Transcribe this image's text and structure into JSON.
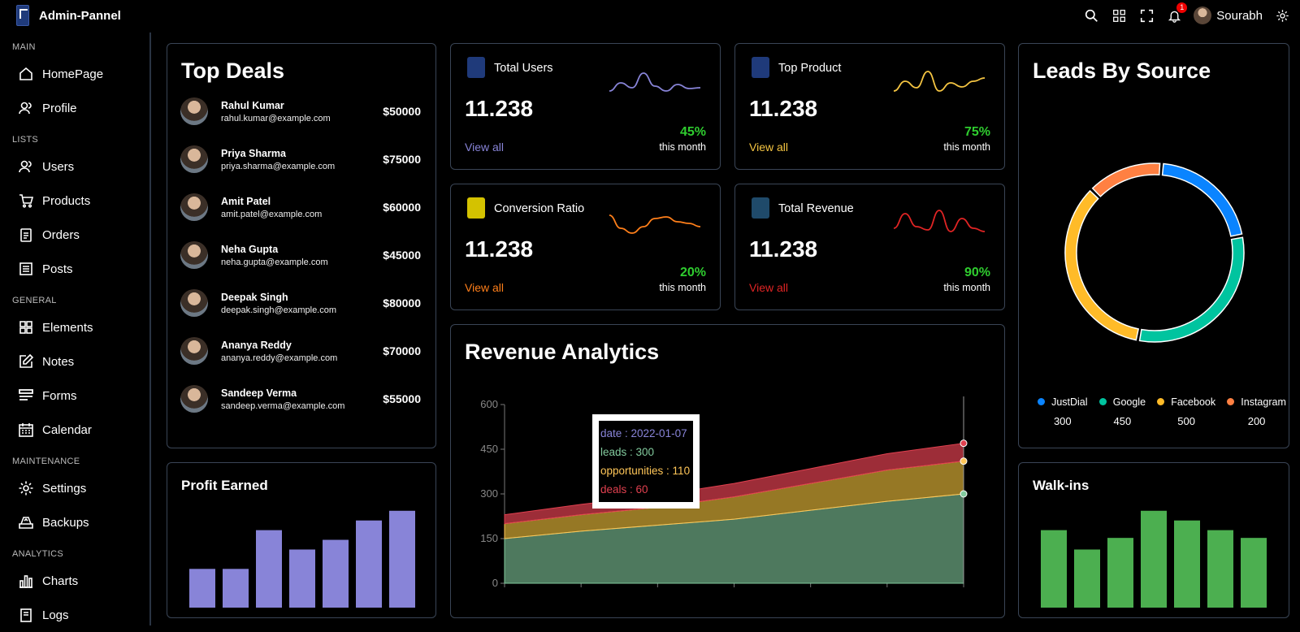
{
  "app": {
    "title": "Admin-Pannel",
    "user": "Sourabh",
    "notifications": "1"
  },
  "sidebar": {
    "sections": [
      {
        "title": "MAIN",
        "items": [
          "HomePage",
          "Profile"
        ]
      },
      {
        "title": "LISTS",
        "items": [
          "Users",
          "Products",
          "Orders",
          "Posts"
        ]
      },
      {
        "title": "GENERAL",
        "items": [
          "Elements",
          "Notes",
          "Forms",
          "Calendar"
        ]
      },
      {
        "title": "MAINTENANCE",
        "items": [
          "Settings",
          "Backups"
        ]
      },
      {
        "title": "ANALYTICS",
        "items": [
          "Charts",
          "Logs"
        ]
      }
    ]
  },
  "top_deals": {
    "title": "Top Deals",
    "items": [
      {
        "name": "Rahul Kumar",
        "email": "rahul.kumar@example.com",
        "amount": "$50000"
      },
      {
        "name": "Priya Sharma",
        "email": "priya.sharma@example.com",
        "amount": "$75000"
      },
      {
        "name": "Amit Patel",
        "email": "amit.patel@example.com",
        "amount": "$60000"
      },
      {
        "name": "Neha Gupta",
        "email": "neha.gupta@example.com",
        "amount": "$45000"
      },
      {
        "name": "Deepak Singh",
        "email": "deepak.singh@example.com",
        "amount": "$80000"
      },
      {
        "name": "Ananya Reddy",
        "email": "ananya.reddy@example.com",
        "amount": "$70000"
      },
      {
        "name": "Sandeep Verma",
        "email": "sandeep.verma@example.com",
        "amount": "$55000"
      }
    ]
  },
  "stats": [
    {
      "label": "Total Users",
      "value": "11.238",
      "link": "View all",
      "percent": "45%",
      "period": "this month",
      "color": "#8884d8",
      "icon_color": "#1f3a7a"
    },
    {
      "label": "Top Product",
      "value": "11.238",
      "link": "View all",
      "percent": "75%",
      "period": "this month",
      "color": "#f5c542",
      "icon_color": "#1f3a7a"
    },
    {
      "label": "Conversion Ratio",
      "value": "11.238",
      "link": "View all",
      "percent": "20%",
      "period": "this month",
      "color": "#ff7f1a",
      "icon_color": "#d4c200"
    },
    {
      "label": "Total Revenue",
      "value": "11.238",
      "link": "View all",
      "percent": "90%",
      "period": "this month",
      "color": "#e02424",
      "icon_color": "#1f4a6a"
    }
  ],
  "leads": {
    "title": "Leads By Source"
  },
  "profit": {
    "title": "Profit Earned"
  },
  "walkins": {
    "title": "Walk-ins"
  },
  "revenue": {
    "title": "Revenue Analytics",
    "tooltip": {
      "date": "date : 2022-01-07",
      "leads": "leads : 300",
      "opportunities": "opportunities : 110",
      "deals": "deals : 60"
    }
  },
  "chart_data": [
    {
      "type": "area",
      "title": "Revenue Analytics",
      "yticks": [
        0,
        150,
        300,
        450,
        600
      ],
      "ylim": [
        0,
        600
      ],
      "x": [
        "",
        "",
        "",
        "",
        "",
        "",
        ""
      ],
      "series": [
        {
          "name": "leads",
          "color": "#82ca9d",
          "values": [
            150,
            175,
            195,
            215,
            245,
            275,
            300
          ]
        },
        {
          "name": "opportunities",
          "color": "#ffc658",
          "values": [
            50,
            55,
            60,
            75,
            90,
            105,
            110
          ]
        },
        {
          "name": "deals",
          "color": "#e0404f",
          "values": [
            30,
            35,
            40,
            45,
            50,
            55,
            60
          ]
        }
      ]
    },
    {
      "type": "pie",
      "title": "Leads By Source",
      "categories": [
        "JustDial",
        "Google",
        "Facebook",
        "Instagram"
      ],
      "values": [
        300,
        450,
        500,
        200
      ],
      "colors": [
        "#0a84ff",
        "#00c49f",
        "#ffbb28",
        "#ff8042"
      ]
    },
    {
      "type": "bar",
      "title": "Profit Earned",
      "values": [
        20,
        20,
        40,
        30,
        35,
        45,
        50
      ],
      "ylim": [
        0,
        52
      ],
      "color": "#8884d8"
    },
    {
      "type": "bar",
      "title": "Walk-ins",
      "values": [
        40,
        30,
        36,
        50,
        45,
        40,
        36
      ],
      "ylim": [
        0,
        52
      ],
      "color": "#4caf50"
    }
  ],
  "sparks": [
    [
      30,
      20,
      26,
      8,
      24,
      30,
      22,
      27,
      26
    ],
    [
      30,
      18,
      26,
      6,
      30,
      20,
      25,
      18,
      14
    ],
    [
      10,
      26,
      32,
      24,
      14,
      12,
      18,
      20,
      24
    ],
    [
      26,
      8,
      24,
      28,
      4,
      30,
      14,
      26,
      30
    ]
  ]
}
